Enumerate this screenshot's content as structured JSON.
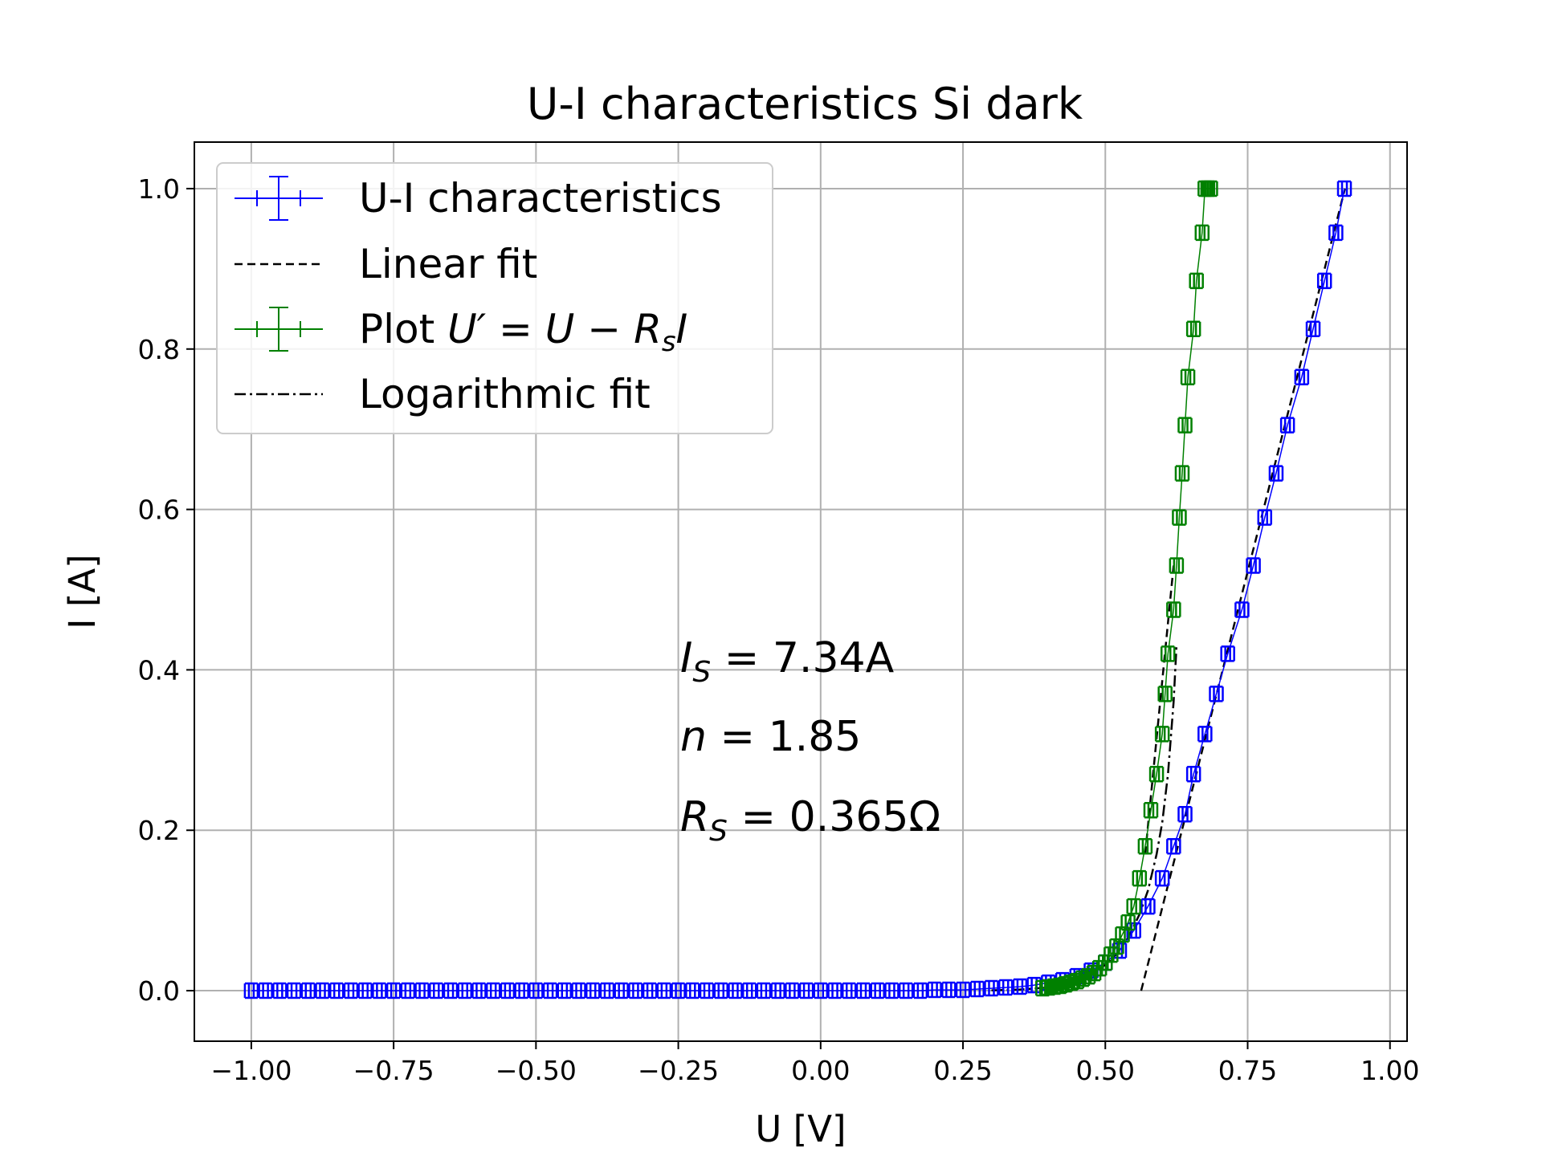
{
  "chart_data": {
    "type": "scatter",
    "title": "U-I characteristics Si dark",
    "xlabel": "U [V]",
    "ylabel": "I [A]",
    "xlim": [
      -1.1,
      1.03
    ],
    "ylim": [
      -0.063,
      1.058
    ],
    "xticks": [
      -1.0,
      -0.75,
      -0.5,
      -0.25,
      0.0,
      0.25,
      0.5,
      0.75,
      1.0
    ],
    "xtick_labels": [
      "−1.00",
      "−0.75",
      "−0.50",
      "−0.25",
      "0.00",
      "0.25",
      "0.50",
      "0.75",
      "1.00"
    ],
    "yticks": [
      0.0,
      0.2,
      0.4,
      0.6,
      0.8,
      1.0
    ],
    "ytick_labels": [
      "0.0",
      "0.2",
      "0.4",
      "0.6",
      "0.8",
      "1.0"
    ],
    "grid": true,
    "legend_position": "top-left",
    "legend": [
      {
        "label": "U-I characteristics",
        "style": "errorbar",
        "color": "#0000ff"
      },
      {
        "label": "Linear fit",
        "style": "dashed",
        "color": "#000000"
      },
      {
        "label": "Plot  U′ = U − RₛI",
        "style": "errorbar",
        "color": "#008000"
      },
      {
        "label": "Logarithmic fit",
        "style": "dashdot",
        "color": "#000000"
      }
    ],
    "annotations": [
      "I_S = 7.34A",
      "n = 1.85",
      "R_S = 0.365Ω"
    ],
    "series": [
      {
        "name": "U-I characteristics",
        "color": "#0000ff",
        "x": [
          -1.0,
          -0.975,
          -0.95,
          -0.925,
          -0.9,
          -0.875,
          -0.85,
          -0.825,
          -0.8,
          -0.775,
          -0.75,
          -0.725,
          -0.7,
          -0.675,
          -0.65,
          -0.625,
          -0.6,
          -0.575,
          -0.55,
          -0.525,
          -0.5,
          -0.475,
          -0.45,
          -0.425,
          -0.4,
          -0.375,
          -0.35,
          -0.325,
          -0.3,
          -0.275,
          -0.25,
          -0.225,
          -0.2,
          -0.175,
          -0.15,
          -0.125,
          -0.1,
          -0.075,
          -0.05,
          -0.025,
          0.0,
          0.025,
          0.05,
          0.075,
          0.1,
          0.125,
          0.15,
          0.175,
          0.2,
          0.225,
          0.25,
          0.275,
          0.3,
          0.325,
          0.35,
          0.375,
          0.4,
          0.425,
          0.45,
          0.475,
          0.5,
          0.525,
          0.55,
          0.575,
          0.6,
          0.62,
          0.64,
          0.655,
          0.675,
          0.695,
          0.715,
          0.74,
          0.76,
          0.78,
          0.8,
          0.82,
          0.845,
          0.865,
          0.885,
          0.905,
          0.92
        ],
        "y": [
          0,
          0,
          0,
          0,
          0,
          0,
          0,
          0,
          0,
          0,
          0,
          0,
          0,
          0,
          0,
          0,
          0,
          0,
          0,
          0,
          0,
          0,
          0,
          0,
          0,
          0,
          0,
          0,
          0,
          0,
          0,
          0,
          0,
          0,
          0,
          0,
          0,
          0,
          0,
          0,
          0,
          0,
          0,
          0,
          0,
          0,
          0,
          0,
          0.001,
          0.001,
          0.001,
          0.002,
          0.003,
          0.004,
          0.005,
          0.007,
          0.01,
          0.013,
          0.018,
          0.025,
          0.035,
          0.05,
          0.075,
          0.105,
          0.14,
          0.18,
          0.22,
          0.27,
          0.32,
          0.37,
          0.42,
          0.475,
          0.53,
          0.59,
          0.645,
          0.705,
          0.765,
          0.825,
          0.885,
          0.945,
          1.0
        ]
      },
      {
        "name": "Plot U' = U - R_s I",
        "color": "#008000",
        "x": [
          0.39,
          0.4,
          0.41,
          0.42,
          0.43,
          0.44,
          0.45,
          0.46,
          0.47,
          0.48,
          0.49,
          0.5,
          0.51,
          0.52,
          0.53,
          0.54,
          0.55,
          0.56,
          0.57,
          0.58,
          0.59,
          0.6,
          0.605,
          0.61,
          0.62,
          0.625,
          0.63,
          0.635,
          0.64,
          0.645,
          0.655,
          0.66,
          0.67,
          0.675,
          0.68,
          0.685
        ],
        "y": [
          0.003,
          0.004,
          0.005,
          0.006,
          0.008,
          0.01,
          0.012,
          0.015,
          0.018,
          0.022,
          0.028,
          0.035,
          0.045,
          0.055,
          0.07,
          0.085,
          0.105,
          0.14,
          0.18,
          0.225,
          0.27,
          0.32,
          0.37,
          0.42,
          0.475,
          0.53,
          0.59,
          0.645,
          0.705,
          0.765,
          0.825,
          0.885,
          0.945,
          1.0,
          1.0,
          1.0
        ]
      },
      {
        "name": "Linear fit (U-I)",
        "color": "#000000",
        "style": "dashed",
        "x": [
          0.563,
          0.921
        ],
        "y": [
          0.0,
          1.0
        ]
      },
      {
        "name": "Linear fit (U')",
        "color": "#000000",
        "style": "dashed",
        "x": [
          0.57,
          0.62
        ],
        "y": [
          0.17,
          0.53
        ]
      },
      {
        "name": "Logarithmic fit",
        "color": "#000000",
        "style": "dashdot",
        "x": [
          0.3,
          0.35,
          0.4,
          0.45,
          0.5,
          0.52,
          0.54,
          0.56,
          0.575,
          0.59,
          0.6,
          0.61,
          0.62,
          0.625
        ],
        "y": [
          0.0005,
          0.0015,
          0.004,
          0.012,
          0.032,
          0.046,
          0.066,
          0.095,
          0.125,
          0.17,
          0.21,
          0.27,
          0.36,
          0.43
        ]
      }
    ]
  }
}
